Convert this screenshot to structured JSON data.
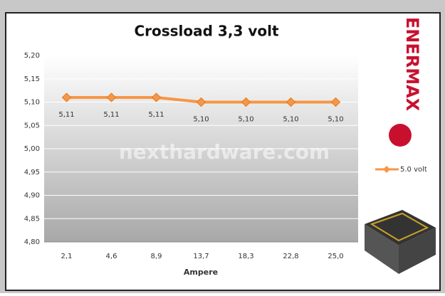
{
  "chart_data": {
    "type": "line",
    "title": "Crossload 3,3 volt",
    "x_label": "Ampere",
    "categories": [
      "2,1",
      "4,6",
      "8,9",
      "13,7",
      "18,3",
      "22,8",
      "25,0"
    ],
    "series": [
      {
        "name": "5.0 volt",
        "color": "#f79646",
        "values": [
          5.11,
          5.11,
          5.11,
          5.1,
          5.1,
          5.1,
          5.1
        ],
        "value_labels": [
          "5,11",
          "5,11",
          "5,11",
          "5,10",
          "5,10",
          "5,10",
          "5,10"
        ]
      }
    ],
    "ylim": [
      4.8,
      5.2
    ],
    "yticks": [
      {
        "value": 4.8,
        "label": "4,80"
      },
      {
        "value": 4.85,
        "label": "4,85"
      },
      {
        "value": 4.9,
        "label": "4,90"
      },
      {
        "value": 4.95,
        "label": "4,95"
      },
      {
        "value": 5.0,
        "label": "5,00"
      },
      {
        "value": 5.05,
        "label": "5,05"
      },
      {
        "value": 5.1,
        "label": "5,10"
      },
      {
        "value": 5.15,
        "label": "5,15"
      },
      {
        "value": 5.2,
        "label": "5,20"
      }
    ],
    "grid": true,
    "legend": "right",
    "watermark": "nexthardware.com",
    "logo": "ENERMAX"
  }
}
